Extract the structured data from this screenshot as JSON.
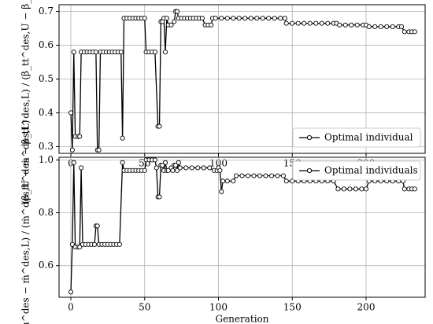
{
  "chart_data": [
    {
      "type": "line",
      "ylabel": "(β_tt^des − β_tt^des,L) / (β_tt^des,U − β_tt^des,L)",
      "x": [
        0,
        1,
        2,
        3,
        5,
        6,
        7,
        9,
        11,
        13,
        15,
        17,
        18,
        19,
        20,
        22,
        24,
        26,
        28,
        30,
        32,
        34,
        35,
        36,
        38,
        40,
        42,
        44,
        46,
        48,
        50,
        51,
        53,
        55,
        57,
        59,
        60,
        61,
        62,
        63,
        64,
        65,
        66,
        68,
        70,
        71,
        72,
        73,
        75,
        77,
        79,
        81,
        83,
        85,
        87,
        89,
        91,
        93,
        95,
        96,
        98,
        102,
        106,
        110,
        114,
        118,
        122,
        126,
        130,
        134,
        138,
        142,
        145,
        146,
        150,
        154,
        158,
        162,
        166,
        170,
        174,
        178,
        180,
        182,
        186,
        190,
        194,
        198,
        200,
        202,
        206,
        210,
        214,
        218,
        222,
        224,
        226,
        229,
        231,
        233
      ],
      "series": [
        {
          "name": "Optimal individual",
          "color": "#000000",
          "values": [
            0.4,
            0.29,
            0.58,
            0.33,
            0.33,
            0.33,
            0.58,
            0.58,
            0.58,
            0.58,
            0.58,
            0.58,
            0.29,
            0.29,
            0.58,
            0.58,
            0.58,
            0.58,
            0.58,
            0.58,
            0.58,
            0.58,
            0.325,
            0.68,
            0.68,
            0.68,
            0.68,
            0.68,
            0.68,
            0.68,
            0.68,
            0.58,
            0.58,
            0.58,
            0.58,
            0.36,
            0.36,
            0.67,
            0.67,
            0.68,
            0.58,
            0.68,
            0.66,
            0.66,
            0.67,
            0.7,
            0.7,
            0.68,
            0.68,
            0.68,
            0.68,
            0.68,
            0.68,
            0.68,
            0.68,
            0.68,
            0.66,
            0.66,
            0.66,
            0.68,
            0.68,
            0.68,
            0.68,
            0.68,
            0.68,
            0.68,
            0.68,
            0.68,
            0.68,
            0.68,
            0.68,
            0.68,
            0.68,
            0.665,
            0.665,
            0.665,
            0.665,
            0.665,
            0.665,
            0.665,
            0.665,
            0.665,
            0.665,
            0.66,
            0.66,
            0.66,
            0.66,
            0.66,
            0.66,
            0.655,
            0.655,
            0.655,
            0.655,
            0.655,
            0.655,
            0.655,
            0.64,
            0.64,
            0.64,
            0.64
          ]
        }
      ],
      "xlim": [
        -8,
        240
      ],
      "xticks": [
        0,
        50,
        100,
        150,
        200
      ],
      "ylim": [
        0.28,
        0.72
      ],
      "yticks": [
        0.3,
        0.4,
        0.5,
        0.6,
        0.7
      ],
      "grid": true,
      "legend": "lower right"
    },
    {
      "type": "line",
      "ylabel": "(ṁ^des − ṁ^des,L) / (ṁ^des,U − ṁ^des,L)",
      "xlabel": "Generation",
      "x": [
        0,
        1,
        2,
        3,
        5,
        6,
        7,
        8,
        10,
        12,
        14,
        16,
        17,
        18,
        19,
        21,
        23,
        25,
        27,
        29,
        31,
        33,
        35,
        36,
        38,
        40,
        42,
        44,
        46,
        48,
        50,
        51,
        53,
        55,
        57,
        58,
        59,
        60,
        61,
        62,
        63,
        64,
        65,
        66,
        68,
        69,
        70,
        71,
        72,
        73,
        74,
        78,
        82,
        86,
        90,
        94,
        97,
        99,
        100,
        101,
        102,
        103,
        106,
        110,
        112,
        116,
        120,
        124,
        128,
        132,
        136,
        140,
        144,
        146,
        150,
        154,
        158,
        162,
        166,
        170,
        174,
        178,
        181,
        185,
        189,
        193,
        197,
        200,
        202,
        206,
        210,
        214,
        218,
        222,
        225,
        226,
        229,
        231,
        233
      ],
      "series": [
        {
          "name": "Optimal individuals",
          "color": "#000000",
          "values": [
            0.5,
            0.68,
            0.99,
            0.67,
            0.67,
            0.67,
            0.97,
            0.68,
            0.68,
            0.68,
            0.68,
            0.68,
            0.75,
            0.75,
            0.68,
            0.68,
            0.68,
            0.68,
            0.68,
            0.68,
            0.68,
            0.68,
            0.99,
            0.96,
            0.96,
            0.96,
            0.96,
            0.96,
            0.96,
            0.96,
            0.96,
            1.0,
            1.0,
            1.0,
            1.0,
            0.97,
            0.86,
            0.86,
            0.98,
            0.98,
            0.96,
            0.99,
            0.96,
            0.96,
            0.97,
            0.96,
            0.98,
            0.98,
            0.96,
            0.99,
            0.97,
            0.97,
            0.97,
            0.97,
            0.97,
            0.97,
            0.96,
            0.96,
            0.97,
            0.96,
            0.88,
            0.92,
            0.92,
            0.92,
            0.94,
            0.94,
            0.94,
            0.94,
            0.94,
            0.94,
            0.94,
            0.94,
            0.94,
            0.92,
            0.92,
            0.92,
            0.92,
            0.92,
            0.92,
            0.92,
            0.92,
            0.92,
            0.89,
            0.89,
            0.89,
            0.89,
            0.89,
            0.89,
            0.92,
            0.92,
            0.92,
            0.92,
            0.92,
            0.92,
            0.92,
            0.89,
            0.89,
            0.89,
            0.89
          ]
        }
      ],
      "xlim": [
        -8,
        240
      ],
      "xticks": [
        0,
        50,
        100,
        150,
        200
      ],
      "ylim": [
        0.48,
        1.01
      ],
      "yticks": [
        0.6,
        0.8,
        {
          "value": 1.0,
          "label": "1.0"
        }
      ],
      "grid": true,
      "legend": "upper right"
    }
  ]
}
